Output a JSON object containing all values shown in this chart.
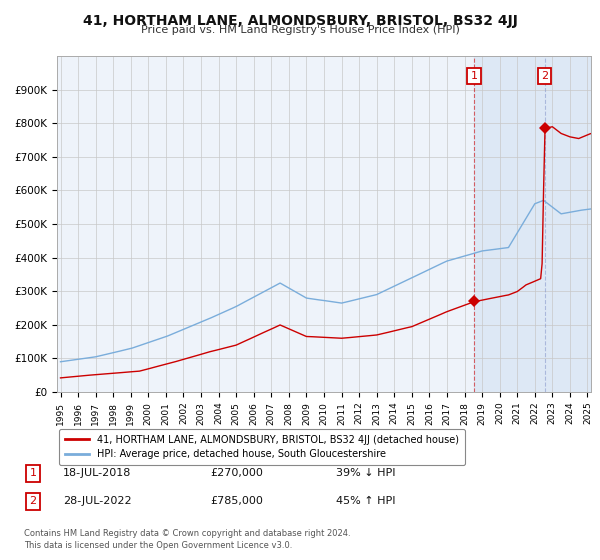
{
  "title": "41, HORTHAM LANE, ALMONDSBURY, BRISTOL, BS32 4JJ",
  "subtitle": "Price paid vs. HM Land Registry's House Price Index (HPI)",
  "hpi_color": "#7aaddb",
  "price_color": "#cc0000",
  "background_color": "#ffffff",
  "chart_bg": "#eef3fa",
  "highlight_bg": "#dde8f5",
  "grid_color": "#c8c8c8",
  "ylim": [
    0,
    1000000
  ],
  "yticks": [
    0,
    100000,
    200000,
    300000,
    400000,
    500000,
    600000,
    700000,
    800000,
    900000
  ],
  "sale1_date_yr": 2018.54,
  "sale1_price": 270000,
  "sale1_label": "18-JUL-2018",
  "sale1_pct": "39% ↓ HPI",
  "sale2_date_yr": 2022.57,
  "sale2_price": 785000,
  "sale2_label": "28-JUL-2022",
  "sale2_pct": "45% ↑ HPI",
  "legend_line1": "41, HORTHAM LANE, ALMONDSBURY, BRISTOL, BS32 4JJ (detached house)",
  "legend_line2": "HPI: Average price, detached house, South Gloucestershire",
  "footnote": "Contains HM Land Registry data © Crown copyright and database right 2024.\nThis data is licensed under the Open Government Licence v3.0.",
  "x_start_year": 1995,
  "x_end_year": 2025
}
